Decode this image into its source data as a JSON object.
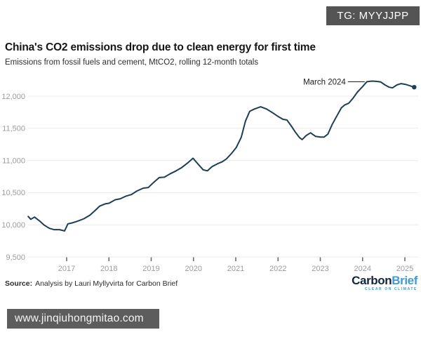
{
  "badge": {
    "label": "TG: MYYJJPP"
  },
  "chart_data": {
    "type": "line",
    "title": "China's CO2 emissions drop due to clean energy for first time",
    "subtitle": "Emissions from fossil fuels and cement, MtCO2, rolling 12-month totals",
    "xlabel": "",
    "ylabel": "MtCO2",
    "x_ticks": [
      2017,
      2018,
      2019,
      2020,
      2021,
      2022,
      2023,
      2024,
      2025
    ],
    "y_ticks": [
      9500,
      10000,
      10500,
      11000,
      11500,
      12000
    ],
    "ylim": [
      9500,
      12000
    ],
    "xlim": [
      2016.05,
      2025.3
    ],
    "grid": "horizontal",
    "legend": "none",
    "line_color": "#1d3e53",
    "grid_color": "#e9e9e9",
    "axis_label_color": "#9c9c9c",
    "annotation": {
      "label": "March 2024",
      "x": 2024.1,
      "y": 12225
    },
    "series": [
      {
        "name": "China CO2 emissions, rolling 12-month total (MtCO2)",
        "points": [
          [
            2016.09,
            10130
          ],
          [
            2016.15,
            10085
          ],
          [
            2016.24,
            10120
          ],
          [
            2016.37,
            10055
          ],
          [
            2016.47,
            9995
          ],
          [
            2016.59,
            9945
          ],
          [
            2016.7,
            9925
          ],
          [
            2016.83,
            9925
          ],
          [
            2016.95,
            9905
          ],
          [
            2017.03,
            10015
          ],
          [
            2017.13,
            10030
          ],
          [
            2017.25,
            10055
          ],
          [
            2017.41,
            10095
          ],
          [
            2017.55,
            10150
          ],
          [
            2017.66,
            10215
          ],
          [
            2017.78,
            10290
          ],
          [
            2017.91,
            10325
          ],
          [
            2018.0,
            10335
          ],
          [
            2018.15,
            10390
          ],
          [
            2018.27,
            10405
          ],
          [
            2018.4,
            10445
          ],
          [
            2018.53,
            10470
          ],
          [
            2018.66,
            10525
          ],
          [
            2018.81,
            10570
          ],
          [
            2018.93,
            10580
          ],
          [
            2019.06,
            10660
          ],
          [
            2019.19,
            10735
          ],
          [
            2019.31,
            10740
          ],
          [
            2019.44,
            10790
          ],
          [
            2019.59,
            10840
          ],
          [
            2019.72,
            10890
          ],
          [
            2019.85,
            10955
          ],
          [
            2019.99,
            11035
          ],
          [
            2020.1,
            10950
          ],
          [
            2020.23,
            10855
          ],
          [
            2020.33,
            10840
          ],
          [
            2020.44,
            10905
          ],
          [
            2020.57,
            10950
          ],
          [
            2020.68,
            10980
          ],
          [
            2020.78,
            11025
          ],
          [
            2020.9,
            11110
          ],
          [
            2021.01,
            11200
          ],
          [
            2021.13,
            11360
          ],
          [
            2021.23,
            11615
          ],
          [
            2021.33,
            11765
          ],
          [
            2021.44,
            11800
          ],
          [
            2021.59,
            11835
          ],
          [
            2021.73,
            11800
          ],
          [
            2021.89,
            11735
          ],
          [
            2022.01,
            11680
          ],
          [
            2022.12,
            11640
          ],
          [
            2022.21,
            11630
          ],
          [
            2022.31,
            11540
          ],
          [
            2022.41,
            11440
          ],
          [
            2022.51,
            11355
          ],
          [
            2022.57,
            11325
          ],
          [
            2022.67,
            11390
          ],
          [
            2022.77,
            11430
          ],
          [
            2022.89,
            11375
          ],
          [
            2023.0,
            11365
          ],
          [
            2023.09,
            11365
          ],
          [
            2023.18,
            11410
          ],
          [
            2023.28,
            11560
          ],
          [
            2023.38,
            11680
          ],
          [
            2023.5,
            11820
          ],
          [
            2023.58,
            11865
          ],
          [
            2023.67,
            11890
          ],
          [
            2023.77,
            11965
          ],
          [
            2023.88,
            12065
          ],
          [
            2024.0,
            12150
          ],
          [
            2024.1,
            12225
          ],
          [
            2024.22,
            12235
          ],
          [
            2024.33,
            12230
          ],
          [
            2024.43,
            12220
          ],
          [
            2024.53,
            12175
          ],
          [
            2024.63,
            12140
          ],
          [
            2024.71,
            12130
          ],
          [
            2024.81,
            12175
          ],
          [
            2024.91,
            12195
          ],
          [
            2025.01,
            12185
          ],
          [
            2025.11,
            12165
          ],
          [
            2025.22,
            12140
          ]
        ]
      }
    ]
  },
  "source": {
    "label": "Source:",
    "text": "Analysis by Lauri Myllyvirta for Carbon Brief"
  },
  "logo": {
    "part1": "Carbon",
    "part2": "Brief",
    "tagline": "CLEAR ON CLIMATE",
    "color_dark": "#10263b",
    "color_light": "#3e9ad6"
  },
  "watermark": {
    "url": "www.jinqiuhongmitao.com"
  }
}
